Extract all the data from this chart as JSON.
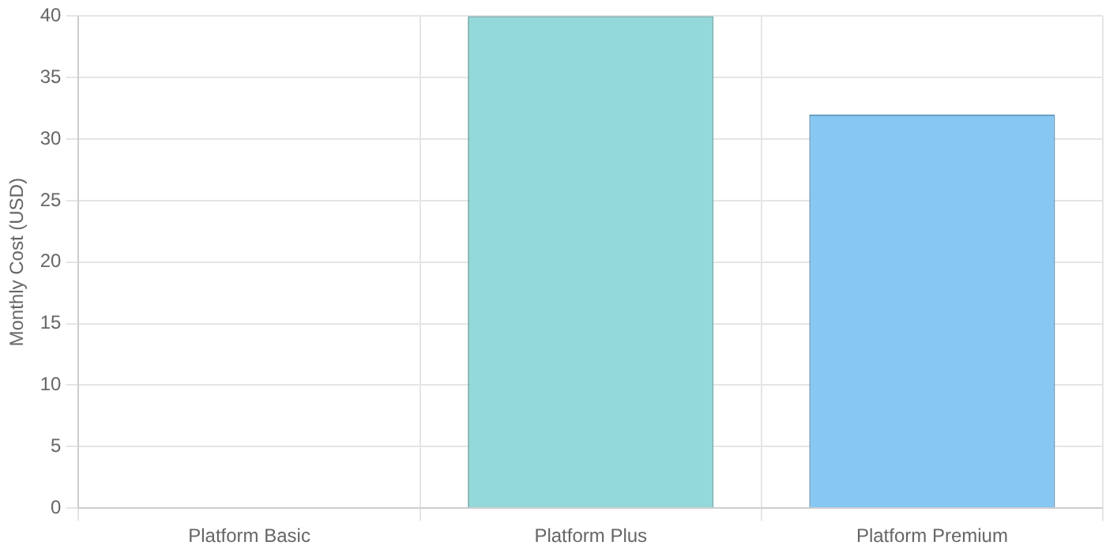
{
  "chart_data": {
    "type": "bar",
    "ylabel": "Monthly Cost (USD)",
    "categories": [
      "Platform Basic",
      "Platform Plus",
      "Platform Premium"
    ],
    "values": [
      0,
      40,
      32
    ],
    "colors": [
      "#93d9d9",
      "#93d9d9",
      "#86c7f3"
    ],
    "ylim": [
      0,
      40
    ],
    "yticks": [
      0,
      5,
      10,
      15,
      20,
      25,
      30,
      35,
      40
    ],
    "grid": true,
    "legend": false
  }
}
